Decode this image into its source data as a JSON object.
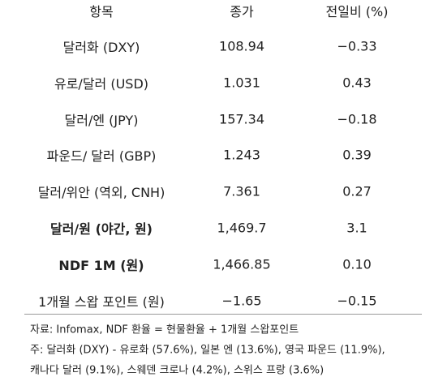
{
  "table": {
    "header": [
      "항목",
      "종가",
      "전일비 (%)"
    ],
    "rows": [
      [
        "달러화 (DXY)",
        "108.94",
        "−0.33"
      ],
      [
        "유로/달러 (USD)",
        "1.031",
        "0.43"
      ],
      [
        "달러/엔 (JPY)",
        "157.34",
        "−0.18"
      ],
      [
        "파운드/ 달러 (GBP)",
        "1.243",
        "0.39"
      ],
      [
        "달러/위안 (역외, CNH)",
        "7.361",
        "0.27"
      ],
      [
        "달러/원 (야간, 원)",
        "1,469.7",
        "3.1"
      ],
      [
        "NDF 1M (원)",
        "1,466.85",
        "0.10"
      ],
      [
        "1개월 스왑 포인트 (원)",
        "−1.65",
        "−0.15"
      ]
    ]
  },
  "notes": [
    "자료: Infomax, NDF 환율 = 현물환율 + 1개월 스왑포인트",
    "주: 달러화 (DXY) - 유로화 (57.6%), 일본 엔 (13.6%), 영국 파운드 (11.9%),",
    "캐나다 달러 (9.1%), 스웨덴 크로나 (4.2%), 스위스 프랑 (3.6%)"
  ]
}
